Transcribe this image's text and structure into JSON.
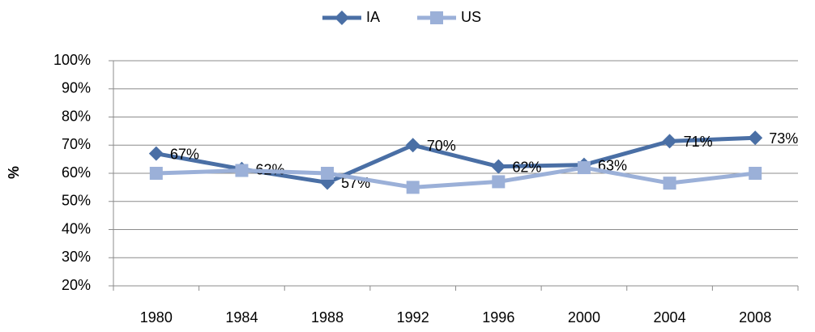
{
  "chart_data": {
    "type": "line",
    "y_label": "%",
    "categories": [
      "1980",
      "1984",
      "1988",
      "1992",
      "1996",
      "2000",
      "2004",
      "2008"
    ],
    "series": [
      {
        "name": "IA",
        "color": "#4a6fa5",
        "marker": "diamond",
        "values": [
          67,
          61.5,
          56.7,
          70,
          62.4,
          63,
          71.4,
          72.6
        ],
        "value_labels": [
          "67%",
          "62%",
          "57%",
          "70%",
          "62%",
          "63%",
          "71%",
          "73%"
        ]
      },
      {
        "name": "US",
        "color": "#9bb0d8",
        "marker": "square",
        "values": [
          60,
          61,
          60,
          55,
          57,
          62,
          56.5,
          60
        ]
      }
    ],
    "ylim": [
      20,
      100
    ],
    "yticks": [
      {
        "value": 20,
        "label": "20%"
      },
      {
        "value": 30,
        "label": "30%"
      },
      {
        "value": 40,
        "label": "40%"
      },
      {
        "value": 50,
        "label": "50%"
      },
      {
        "value": 60,
        "label": "60%"
      },
      {
        "value": 70,
        "label": "70%"
      },
      {
        "value": 80,
        "label": "80%"
      },
      {
        "value": 90,
        "label": "90%"
      },
      {
        "value": 100,
        "label": "100%"
      }
    ],
    "grid": true,
    "legend": "top"
  }
}
